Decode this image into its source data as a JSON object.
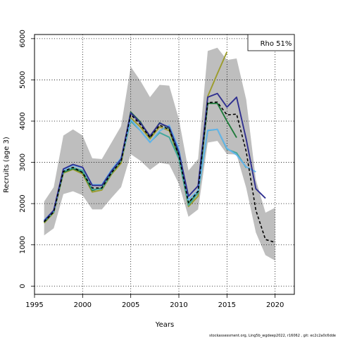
{
  "chart_data": {
    "type": "line",
    "title": "",
    "xlabel": "Years",
    "ylabel": "Recruits (age 3)",
    "xlim": [
      1995,
      2022
    ],
    "ylim": [
      -200,
      6100
    ],
    "xticks": [
      1995,
      2000,
      2005,
      2010,
      2015,
      2020
    ],
    "yticks": [
      0,
      1000,
      2000,
      3000,
      4000,
      5000,
      6000
    ],
    "grid": true,
    "legend_position": "top-right",
    "legend_text": "Rho 51%",
    "footer": "stockassessment.org, Ling5b_wgdeep2022, r16062 , git: ec2c2a0c6dde",
    "band": {
      "color": "#bebebe",
      "x": [
        1996,
        1997,
        1998,
        1999,
        2000,
        2001,
        2002,
        2003,
        2004,
        2005,
        2006,
        2007,
        2008,
        2009,
        2010,
        2011,
        2012,
        2013,
        2014,
        2015,
        2016,
        2017,
        2018,
        2019,
        2020
      ],
      "upper": [
        2050,
        2400,
        3650,
        3800,
        3650,
        3100,
        3080,
        3480,
        3880,
        5320,
        4980,
        4580,
        4880,
        4860,
        4050,
        2800,
        3080,
        5700,
        5780,
        5480,
        5520,
        4520,
        2580,
        1780,
        1900
      ],
      "lower": [
        1230,
        1400,
        2230,
        2300,
        2200,
        1860,
        1860,
        2140,
        2400,
        3200,
        3040,
        2820,
        2990,
        2950,
        2480,
        1680,
        1860,
        3480,
        3520,
        3200,
        3190,
        2380,
        1300,
        750,
        620
      ]
    },
    "series": [
      {
        "color": "#000000",
        "dashed": true,
        "x": [
          1996,
          1997,
          1998,
          1999,
          2000,
          2001,
          2002,
          2003,
          2004,
          2005,
          2006,
          2007,
          2008,
          2009,
          2010,
          2011,
          2012,
          2013,
          2014,
          2015,
          2016,
          2017,
          2018,
          2019,
          2020
        ],
        "values": [
          1560,
          1800,
          2780,
          2880,
          2750,
          2380,
          2380,
          2750,
          3020,
          4160,
          3920,
          3600,
          3900,
          3800,
          3170,
          2020,
          2300,
          4450,
          4460,
          4150,
          4170,
          3260,
          1840,
          1130,
          1060
        ]
      },
      {
        "color": "#303090",
        "dashed": false,
        "x": [
          1996,
          1997,
          1998,
          1999,
          2000,
          2001,
          2002,
          2003,
          2004,
          2005,
          2006,
          2007,
          2008,
          2009,
          2010,
          2011,
          2012,
          2013,
          2014,
          2015,
          2016,
          2017,
          2018,
          2019
        ],
        "values": [
          1580,
          1840,
          2840,
          2950,
          2880,
          2440,
          2440,
          2790,
          3080,
          4200,
          3960,
          3640,
          3950,
          3850,
          3250,
          2180,
          2430,
          4580,
          4670,
          4340,
          4580,
          3560,
          2360,
          2130
        ]
      },
      {
        "color": "#64b4ec",
        "dashed": false,
        "x": [
          1996,
          1997,
          1998,
          1999,
          2000,
          2001,
          2002,
          2003,
          2004,
          2005,
          2006,
          2007,
          2008,
          2009,
          2010,
          2011,
          2012,
          2013,
          2014,
          2015,
          2016,
          2017,
          2018
        ],
        "values": [
          1600,
          1830,
          2820,
          2930,
          2870,
          2460,
          2460,
          2820,
          3110,
          4040,
          3770,
          3480,
          3760,
          3900,
          3330,
          2090,
          2320,
          3780,
          3800,
          3340,
          3180,
          2890,
          2770
        ]
      },
      {
        "color": "#40a89c",
        "dashed": false,
        "x": [
          1996,
          1997,
          1998,
          1999,
          2000,
          2001,
          2002,
          2003,
          2004,
          2005,
          2006,
          2007,
          2008,
          2009,
          2010,
          2011,
          2012,
          2013,
          2014,
          2015,
          2016,
          2017
        ],
        "values": [
          1570,
          1800,
          2780,
          2870,
          2800,
          2340,
          2360,
          2740,
          3050,
          4000,
          3770,
          3490,
          3720,
          3610,
          3090,
          1960,
          2260,
          3770,
          3800,
          3320,
          3230,
          2870
        ]
      },
      {
        "color": "#1f7a3a",
        "dashed": false,
        "x": [
          1996,
          1997,
          1998,
          1999,
          2000,
          2001,
          2002,
          2003,
          2004,
          2005,
          2006,
          2007,
          2008,
          2009,
          2010,
          2011,
          2012,
          2013,
          2014,
          2015,
          2016
        ],
        "values": [
          1550,
          1800,
          2760,
          2850,
          2760,
          2320,
          2380,
          2740,
          3040,
          4220,
          3980,
          3610,
          3960,
          3820,
          3150,
          2020,
          2260,
          4430,
          4430,
          4000,
          3600
        ]
      },
      {
        "color": "#9c9c2c",
        "dashed": false,
        "x": [
          1996,
          1997,
          1998,
          1999,
          2000,
          2001,
          2002,
          2003,
          2004,
          2005,
          2006,
          2007,
          2008,
          2009,
          2010,
          2011,
          2012,
          2013,
          2014,
          2015
        ],
        "values": [
          1530,
          1780,
          2740,
          2830,
          2720,
          2280,
          2330,
          2710,
          2980,
          4080,
          3860,
          3570,
          3860,
          3770,
          3110,
          1930,
          2180,
          4600,
          5150,
          5680
        ]
      }
    ]
  }
}
